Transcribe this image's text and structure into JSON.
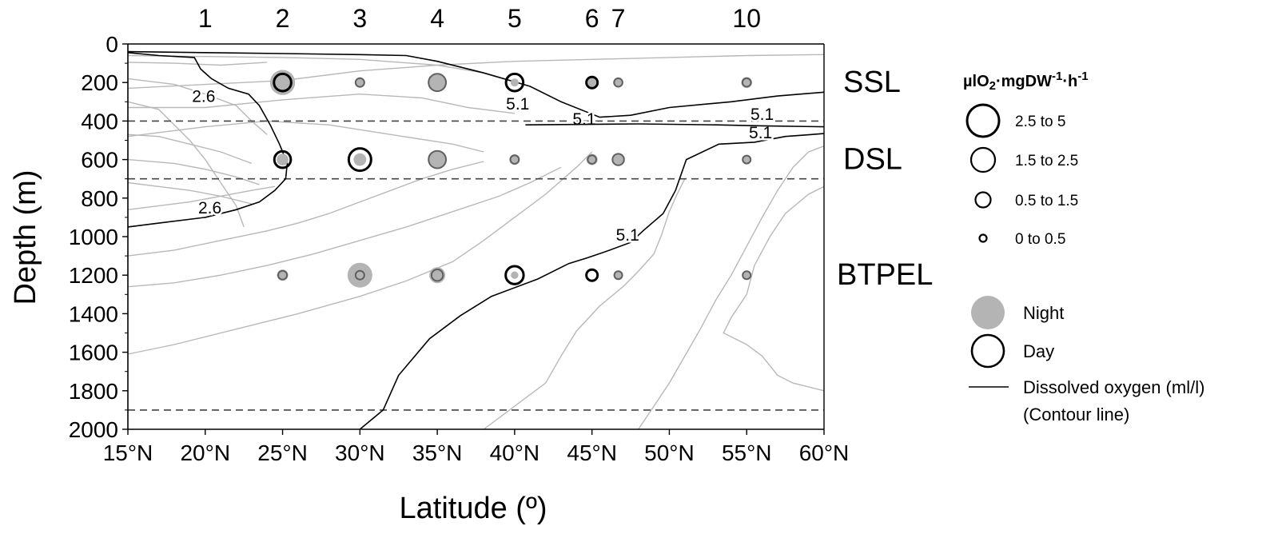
{
  "chart_data": {
    "type": "scatter",
    "subtype": "bubble-over-contour",
    "xlabel": "Latitude (º)",
    "ylabel": "Depth (m)",
    "xlim": [
      15,
      60
    ],
    "ylim": [
      0,
      2000
    ],
    "y_inverted": true,
    "x_ticks": [
      15,
      20,
      25,
      30,
      35,
      40,
      45,
      50,
      55,
      60
    ],
    "x_tick_labels": [
      "15°N",
      "20°N",
      "25°N",
      "30°N",
      "35°N",
      "40°N",
      "45°N",
      "50°N",
      "55°N",
      "60°N"
    ],
    "y_ticks": [
      0,
      200,
      400,
      600,
      800,
      1000,
      1200,
      1400,
      1600,
      1800,
      2000
    ],
    "y_tick_labels": [
      "0",
      "200",
      "400",
      "600",
      "800",
      "1000",
      "1200",
      "1400",
      "1600",
      "1800",
      "2000"
    ],
    "stations": [
      {
        "label": "1",
        "lat": 20
      },
      {
        "label": "2",
        "lat": 25
      },
      {
        "label": "3",
        "lat": 30
      },
      {
        "label": "4",
        "lat": 35
      },
      {
        "label": "5",
        "lat": 40
      },
      {
        "label": "6",
        "lat": 45
      },
      {
        "label": "7",
        "lat": 46.7
      },
      {
        "label": "10",
        "lat": 55
      }
    ],
    "layer_boundaries_m": [
      400,
      700,
      1900
    ],
    "layers": [
      {
        "label": "SSL",
        "depth": 200
      },
      {
        "label": "DSL",
        "depth": 600
      },
      {
        "label": "BTPEL",
        "depth": 1200
      }
    ],
    "size_classes": [
      {
        "label": "2.5  to  5",
        "value": 5
      },
      {
        "label": "1.5  to  2.5",
        "value": 2.5
      },
      {
        "label": "0.5  to  1.5",
        "value": 1.5
      },
      {
        "label": "0  to  0.5",
        "value": 0.5
      }
    ],
    "series": [
      {
        "name": "Night",
        "points": [
          {
            "lat": 25,
            "depth": 200,
            "value": 10
          },
          {
            "lat": 30,
            "depth": 200,
            "value": 0.8
          },
          {
            "lat": 35,
            "depth": 200,
            "value": 4.7
          },
          {
            "lat": 40,
            "depth": 200,
            "value": 0.6
          },
          {
            "lat": 45,
            "depth": 200,
            "value": 0.7
          },
          {
            "lat": 46.7,
            "depth": 200,
            "value": 0.7
          },
          {
            "lat": 55,
            "depth": 200,
            "value": 1.4
          },
          {
            "lat": 25,
            "depth": 600,
            "value": 1.7
          },
          {
            "lat": 30,
            "depth": 600,
            "value": 2.0
          },
          {
            "lat": 35,
            "depth": 600,
            "value": 4.7
          },
          {
            "lat": 40,
            "depth": 600,
            "value": 1.3
          },
          {
            "lat": 45,
            "depth": 600,
            "value": 1.5
          },
          {
            "lat": 46.7,
            "depth": 600,
            "value": 1.6
          },
          {
            "lat": 55,
            "depth": 600,
            "value": 0.7
          },
          {
            "lat": 25,
            "depth": 1200,
            "value": 1.5
          },
          {
            "lat": 30,
            "depth": 1200,
            "value": 9.7
          },
          {
            "lat": 35,
            "depth": 1200,
            "value": 3.6
          },
          {
            "lat": 40,
            "depth": 1200,
            "value": 0.5
          },
          {
            "lat": 45,
            "depth": 200,
            "value": 0.7
          },
          {
            "lat": 46.7,
            "depth": 1200,
            "value": 0.7
          },
          {
            "lat": 55,
            "depth": 1200,
            "value": 0.7
          }
        ]
      },
      {
        "name": "Day",
        "points": [
          {
            "lat": 25,
            "depth": 200,
            "value": 4.3
          },
          {
            "lat": 30,
            "depth": 200,
            "value": 0.8
          },
          {
            "lat": 35,
            "depth": 200,
            "value": 4.4
          },
          {
            "lat": 40,
            "depth": 200,
            "value": 4.3
          },
          {
            "lat": 45,
            "depth": 200,
            "value": 1.5
          },
          {
            "lat": 46.7,
            "depth": 200,
            "value": 0.7
          },
          {
            "lat": 55,
            "depth": 200,
            "value": 0.7
          },
          {
            "lat": 25,
            "depth": 600,
            "value": 3.8
          },
          {
            "lat": 30,
            "depth": 600,
            "value": 7.7
          },
          {
            "lat": 35,
            "depth": 600,
            "value": 4.4
          },
          {
            "lat": 40,
            "depth": 600,
            "value": 0.7
          },
          {
            "lat": 45,
            "depth": 600,
            "value": 0.7
          },
          {
            "lat": 46.7,
            "depth": 600,
            "value": 1.6
          },
          {
            "lat": 55,
            "depth": 600,
            "value": 0.6
          },
          {
            "lat": 25,
            "depth": 1200,
            "value": 0.8
          },
          {
            "lat": 30,
            "depth": 1200,
            "value": 0.8
          },
          {
            "lat": 35,
            "depth": 1200,
            "value": 1.6
          },
          {
            "lat": 40,
            "depth": 1200,
            "value": 4.6
          },
          {
            "lat": 45,
            "depth": 1200,
            "value": 1.5
          },
          {
            "lat": 46.7,
            "depth": 1200,
            "value": 0.6
          },
          {
            "lat": 55,
            "depth": 1200,
            "value": 0.6
          }
        ]
      }
    ],
    "contours": [
      {
        "series": "Dissolved oxygen (ml/l)",
        "level_label": "2.6",
        "kind": "labeled",
        "points": [
          [
            15,
            950
          ],
          [
            17,
            930
          ],
          [
            20,
            900
          ],
          [
            22,
            860
          ],
          [
            23.5,
            820
          ],
          [
            24.5,
            760
          ],
          [
            25.2,
            700
          ],
          [
            25.3,
            620
          ],
          [
            24.8,
            520
          ],
          [
            24.2,
            420
          ],
          [
            23.5,
            320
          ],
          [
            22.8,
            260
          ],
          [
            21.5,
            230
          ],
          [
            20.4,
            180
          ],
          [
            19.7,
            130
          ],
          [
            19.3,
            70
          ],
          [
            17,
            60
          ],
          [
            15,
            45
          ]
        ],
        "label_positions": [
          {
            "lat": 20.3,
            "depth": 880
          },
          {
            "lat": 19.9,
            "depth": 300
          }
        ]
      },
      {
        "series": "Dissolved oxygen (ml/l)",
        "level_label": "5.1",
        "kind": "labeled",
        "points": [
          [
            30,
            2000
          ],
          [
            31.5,
            1900
          ],
          [
            32.5,
            1720
          ],
          [
            34.5,
            1530
          ],
          [
            36.5,
            1410
          ],
          [
            38.5,
            1310
          ],
          [
            41.5,
            1220
          ],
          [
            43.5,
            1140
          ],
          [
            44.7,
            1110
          ],
          [
            45.8,
            1080
          ],
          [
            47.5,
            1030
          ],
          [
            48.3,
            970
          ],
          [
            49.6,
            880
          ],
          [
            50.4,
            760
          ],
          [
            51.1,
            600
          ],
          [
            53.2,
            520
          ],
          [
            55.5,
            510
          ],
          [
            57.5,
            480
          ],
          [
            60,
            465
          ]
        ],
        "label_positions": [
          {
            "lat": 47.3,
            "depth": 1020
          },
          {
            "lat": 55.9,
            "depth": 490
          }
        ]
      },
      {
        "series": "Dissolved oxygen (ml/l)",
        "level_label": "5.1",
        "kind": "labeled",
        "points": [
          [
            15,
            40
          ],
          [
            20,
            45
          ],
          [
            25,
            50
          ],
          [
            30,
            55
          ],
          [
            33,
            60
          ],
          [
            35,
            90
          ],
          [
            38,
            150
          ],
          [
            41,
            220
          ],
          [
            43,
            300
          ],
          [
            45.5,
            380
          ],
          [
            47.5,
            370
          ],
          [
            50,
            330
          ],
          [
            54,
            300
          ],
          [
            57,
            270
          ],
          [
            60,
            250
          ]
        ],
        "label_positions": [
          {
            "lat": 40.2,
            "depth": 340
          },
          {
            "lat": 44.5,
            "depth": 420
          },
          {
            "lat": 56.0,
            "depth": 395
          }
        ]
      },
      {
        "series": "Dissolved oxygen (ml/l)",
        "level_label": "",
        "kind": "secondary",
        "points": [
          [
            40.7,
            420
          ],
          [
            48,
            415
          ],
          [
            53,
            420
          ],
          [
            56,
            425
          ],
          [
            60,
            430
          ]
        ]
      }
    ],
    "legend": {
      "title": "µlO₂·mgDW⁻¹·h⁻¹",
      "entries": [
        "Night",
        "Day",
        "Dissolved oxygen (ml/l)",
        "(Contour line)"
      ],
      "placement": "right"
    },
    "colors": {
      "night_fill": "#b4b4b4",
      "night_stroke": "#5f5f5f",
      "day_stroke": "#000000",
      "contour_oxygen": "#000000",
      "contour_other": "#b8b8b8"
    }
  },
  "legend_title_parts": {
    "base": "µlO",
    "sub": "2",
    "mid": "·mgDW",
    "sup1": "-1",
    "mid2": "·h",
    "sup2": "-1"
  }
}
